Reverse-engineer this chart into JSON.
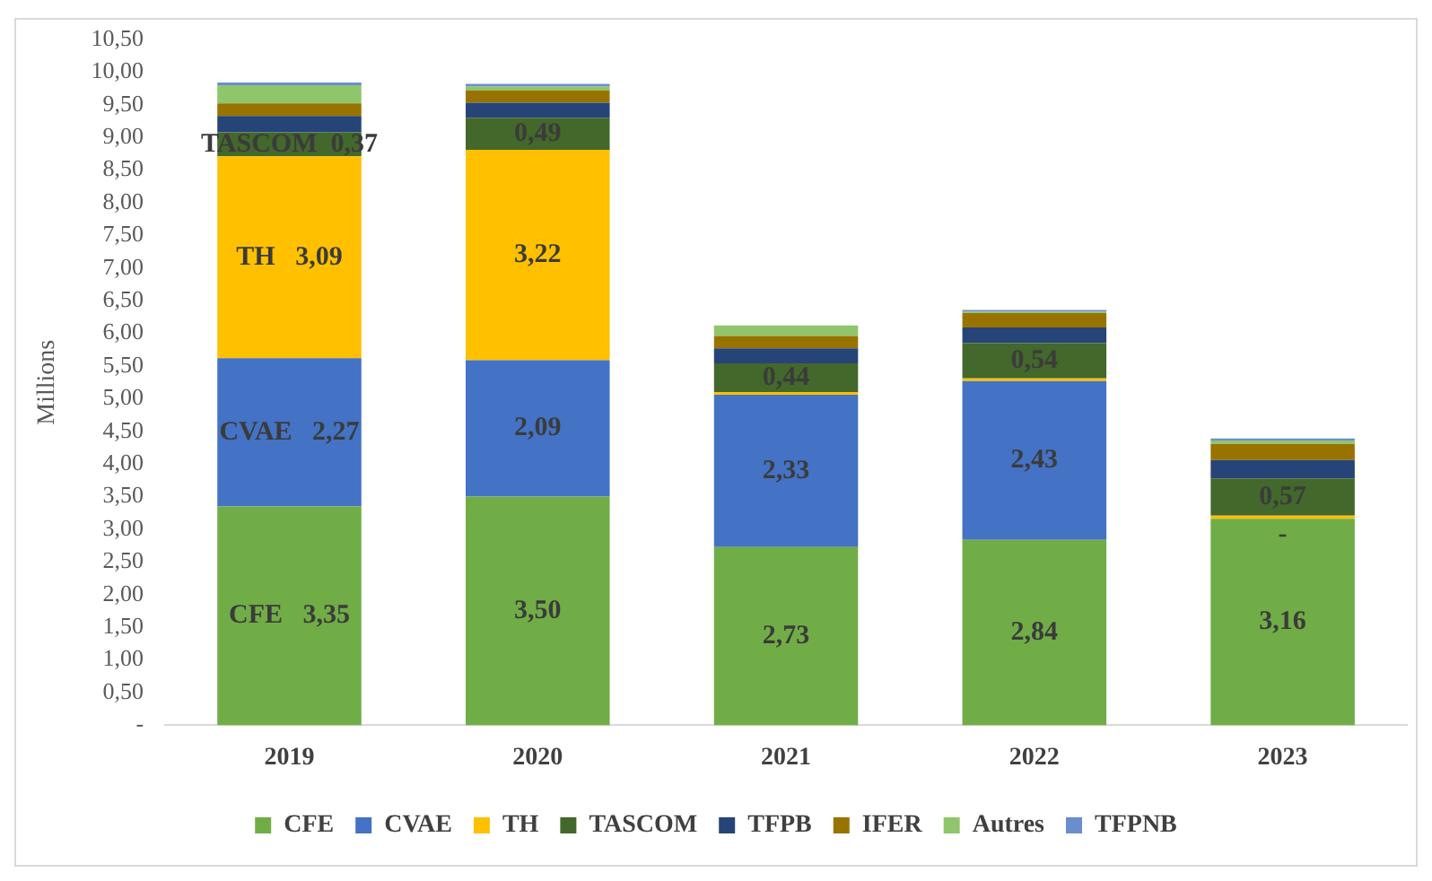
{
  "chart_data": {
    "type": "bar",
    "stacked": true,
    "ylabel": "Millions",
    "categories": [
      "2019",
      "2020",
      "2021",
      "2022",
      "2023"
    ],
    "series": [
      {
        "name": "CFE",
        "color": "#70ad47",
        "values": [
          3.35,
          3.5,
          2.73,
          2.84,
          3.16
        ],
        "value_labels": [
          "CFE   3,35",
          "3,50",
          "2,73",
          "2,84",
          "3,16"
        ]
      },
      {
        "name": "CVAE",
        "color": "#4472c4",
        "values": [
          2.27,
          2.09,
          2.33,
          2.43,
          0
        ],
        "value_labels": [
          "CVAE   2,27",
          "2,09",
          "2,33",
          "2,43",
          null
        ]
      },
      {
        "name": "TH",
        "color": "#ffc000",
        "values": [
          3.09,
          3.22,
          0.04,
          0.04,
          0.05
        ],
        "value_labels": [
          "TH   3,09",
          "3,22",
          null,
          null,
          "-"
        ]
      },
      {
        "name": "TASCOM",
        "color": "#43682b",
        "values": [
          0.37,
          0.49,
          0.44,
          0.54,
          0.57
        ],
        "value_labels": [
          "TASCOM  0,37",
          "0,49",
          "0,44",
          "0,54",
          "0,57"
        ]
      },
      {
        "name": "TFPB",
        "color": "#264478",
        "values": [
          0.25,
          0.23,
          0.23,
          0.24,
          0.28
        ]
      },
      {
        "name": "IFER",
        "color": "#997300",
        "values": [
          0.19,
          0.19,
          0.19,
          0.22,
          0.25
        ]
      },
      {
        "name": "Autres",
        "color": "#8fc66b",
        "values": [
          0.28,
          0.06,
          0.16,
          0.02,
          0.05
        ]
      },
      {
        "name": "TFPNB",
        "color": "#698ed0",
        "values": [
          0.04,
          0.04,
          0,
          0.03,
          0.03
        ]
      }
    ],
    "ylim": [
      0,
      10.5
    ],
    "yticks": [
      {
        "value": 0,
        "label": "-"
      },
      {
        "value": 0.5,
        "label": "0,50"
      },
      {
        "value": 1,
        "label": "1,00"
      },
      {
        "value": 1.5,
        "label": "1,50"
      },
      {
        "value": 2,
        "label": "2,00"
      },
      {
        "value": 2.5,
        "label": "2,50"
      },
      {
        "value": 3,
        "label": "3,00"
      },
      {
        "value": 3.5,
        "label": "3,50"
      },
      {
        "value": 4,
        "label": "4,00"
      },
      {
        "value": 4.5,
        "label": "4,50"
      },
      {
        "value": 5,
        "label": "5,00"
      },
      {
        "value": 5.5,
        "label": "5,50"
      },
      {
        "value": 6,
        "label": "6,00"
      },
      {
        "value": 6.5,
        "label": "6,50"
      },
      {
        "value": 7,
        "label": "7,00"
      },
      {
        "value": 7.5,
        "label": "7,50"
      },
      {
        "value": 8,
        "label": "8,00"
      },
      {
        "value": 8.5,
        "label": "8,50"
      },
      {
        "value": 9,
        "label": "9,00"
      },
      {
        "value": 9.5,
        "label": "9,50"
      },
      {
        "value": 10,
        "label": "10,00"
      },
      {
        "value": 10.5,
        "label": "10,50"
      }
    ],
    "grid": false,
    "legend": "bottom"
  }
}
